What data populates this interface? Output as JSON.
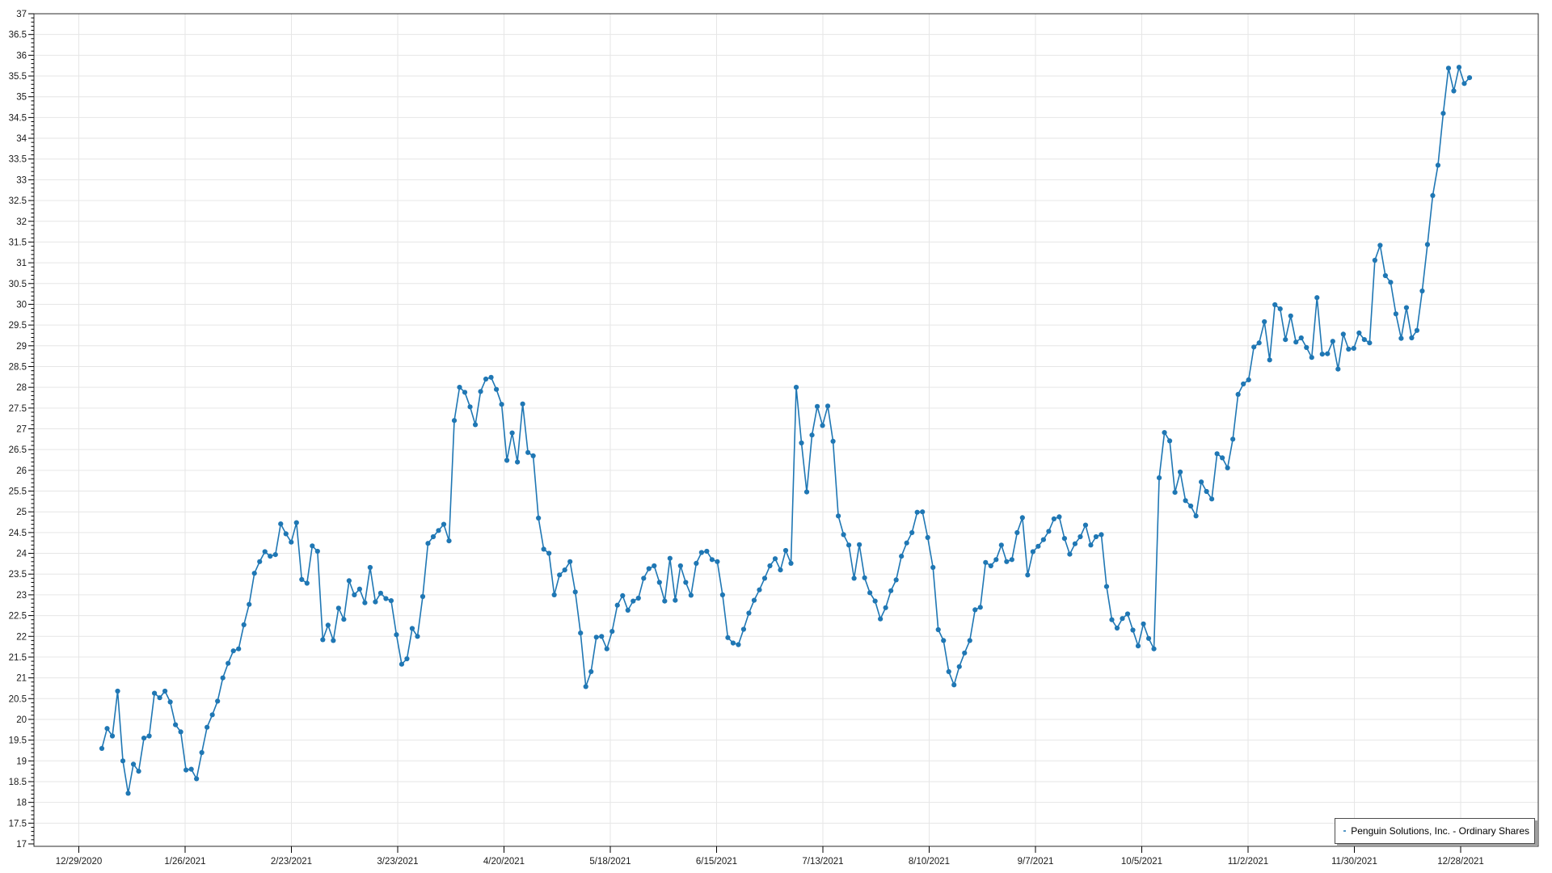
{
  "chart_data": {
    "type": "line",
    "title": "",
    "grid": true,
    "legend_position": "bottom-right",
    "x_axis": {
      "type": "date",
      "tick_labels": [
        "12/29/2020",
        "1/26/2021",
        "2/23/2021",
        "3/23/2021",
        "4/20/2021",
        "5/18/2021",
        "6/15/2021",
        "7/13/2021",
        "8/10/2021",
        "9/7/2021",
        "10/5/2021",
        "11/2/2021",
        "11/30/2021",
        "12/28/2021"
      ]
    },
    "y_axis": {
      "min": 17,
      "max": 37,
      "major_step": 0.5,
      "minor_step": 0.1
    },
    "series": [
      {
        "name": "Penguin Solutions, Inc. - Ordinary Shares",
        "color": "#1f77b4",
        "marker": "circle",
        "values": [
          19.3,
          19.78,
          19.6,
          20.68,
          19.0,
          18.22,
          18.92,
          18.75,
          19.55,
          19.6,
          20.63,
          20.52,
          20.68,
          20.42,
          19.87,
          19.7,
          18.78,
          18.8,
          18.57,
          19.2,
          19.81,
          20.11,
          20.44,
          21.0,
          21.35,
          21.65,
          21.7,
          22.28,
          22.77,
          23.52,
          23.8,
          24.04,
          23.93,
          23.97,
          24.71,
          24.47,
          24.27,
          24.74,
          23.37,
          23.28,
          24.18,
          24.05,
          21.92,
          22.27,
          21.9,
          22.68,
          22.41,
          23.34,
          23.0,
          23.14,
          22.81,
          23.66,
          22.83,
          23.04,
          22.91,
          22.86,
          22.04,
          21.33,
          21.46,
          22.19,
          22.0,
          22.96,
          24.24,
          24.4,
          24.55,
          24.7,
          24.3,
          27.2,
          28.0,
          27.88,
          27.53,
          27.1,
          27.9,
          28.2,
          28.24,
          27.95,
          27.59,
          26.24,
          26.9,
          26.2,
          27.6,
          26.43,
          26.35,
          24.85,
          24.1,
          24.0,
          23.0,
          23.48,
          23.6,
          23.8,
          23.07,
          22.08,
          20.79,
          21.15,
          21.98,
          22.0,
          21.7,
          22.12,
          22.75,
          22.98,
          22.63,
          22.85,
          22.92,
          23.4,
          23.63,
          23.7,
          23.3,
          22.85,
          23.88,
          22.87,
          23.7,
          23.3,
          22.99,
          23.76,
          24.02,
          24.05,
          23.85,
          23.8,
          23.0,
          21.97,
          21.84,
          21.8,
          22.17,
          22.56,
          22.87,
          23.12,
          23.4,
          23.7,
          23.87,
          23.6,
          24.07,
          23.76,
          28.0,
          26.66,
          25.48,
          26.85,
          27.54,
          27.08,
          27.55,
          26.7,
          24.9,
          24.45,
          24.2,
          23.4,
          24.21,
          23.41,
          23.05,
          22.85,
          22.42,
          22.69,
          23.1,
          23.36,
          23.93,
          24.25,
          24.5,
          24.99,
          25.0,
          24.38,
          23.66,
          22.16,
          21.9,
          21.15,
          20.83,
          21.27,
          21.6,
          21.9,
          22.64,
          22.7,
          23.78,
          23.7,
          23.85,
          24.2,
          23.8,
          23.85,
          24.5,
          24.86,
          23.48,
          24.04,
          24.17,
          24.33,
          24.53,
          24.83,
          24.88,
          24.36,
          23.98,
          24.23,
          24.4,
          24.68,
          24.2,
          24.4,
          24.45,
          23.2,
          22.4,
          22.2,
          22.43,
          22.54,
          22.15,
          21.77,
          22.3,
          21.95,
          21.7,
          25.82,
          26.91,
          26.71,
          25.47,
          25.96,
          25.27,
          25.14,
          24.9,
          25.72,
          25.49,
          25.31,
          26.4,
          26.3,
          26.06,
          26.75,
          27.83,
          28.08,
          28.18,
          28.97,
          29.07,
          29.58,
          28.66,
          29.99,
          29.89,
          29.15,
          29.72,
          29.09,
          29.19,
          28.96,
          28.72,
          30.16,
          28.8,
          28.81,
          29.11,
          28.44,
          29.28,
          28.92,
          28.94,
          29.31,
          29.15,
          29.07,
          31.06,
          31.42,
          30.69,
          30.53,
          29.77,
          29.18,
          29.92,
          29.19,
          29.37,
          30.32,
          31.44,
          32.62,
          33.35,
          34.6,
          35.69,
          35.14,
          35.71,
          35.32,
          35.46
        ]
      }
    ]
  },
  "legend": {
    "label": "Penguin Solutions, Inc. - Ordinary Shares"
  },
  "colors": {
    "series": "#1f77b4",
    "grid": "#e6e6e6",
    "axis": "#000000",
    "text": "#1a1a1a",
    "legend_border": "#4d4d4d",
    "legend_shadow": "#a0a0a0",
    "background": "#ffffff"
  }
}
